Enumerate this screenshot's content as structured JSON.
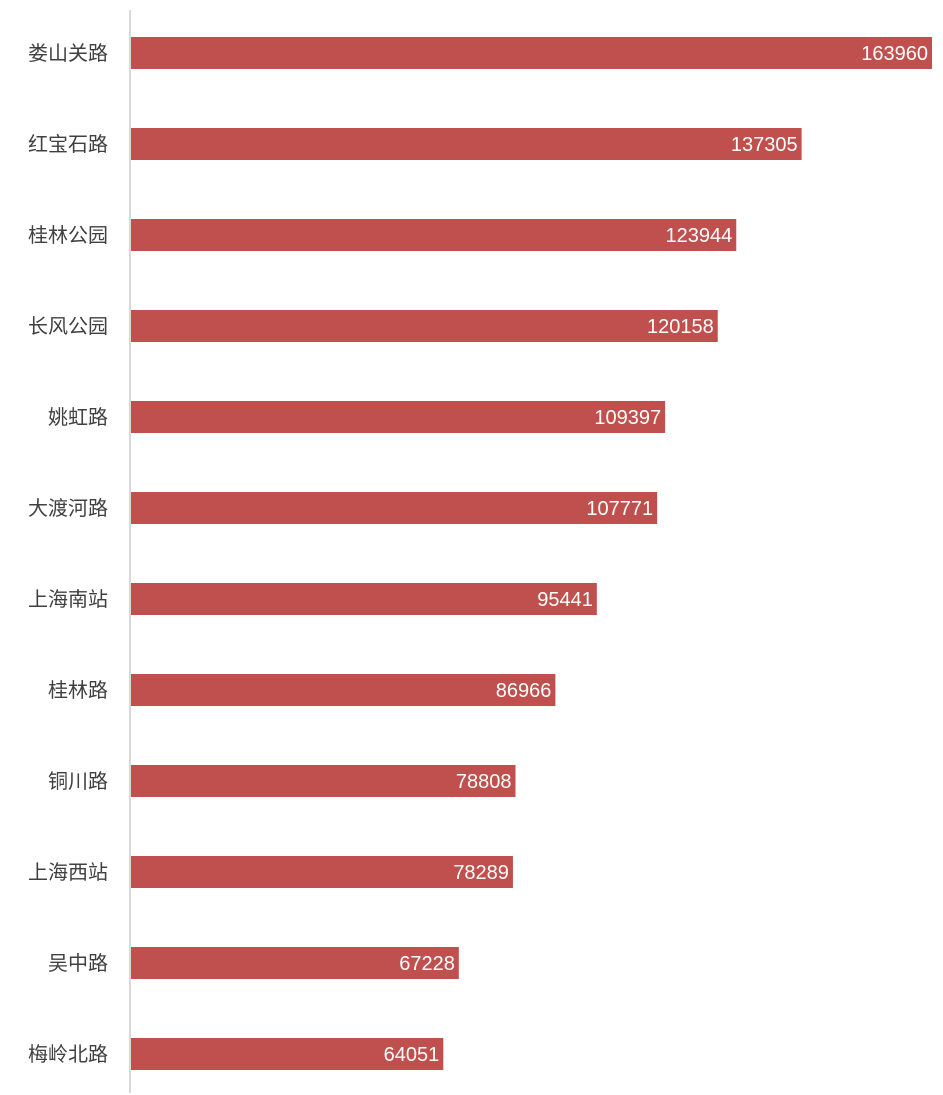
{
  "chart_data": {
    "type": "bar",
    "orientation": "horizontal",
    "title": "",
    "xlabel": "",
    "ylabel": "",
    "categories": [
      "娄山关路",
      "红宝石路",
      "桂林公园",
      "长风公园",
      "姚虹路",
      "大渡河路",
      "上海南站",
      "桂林路",
      "铜川路",
      "上海西站",
      "吴中路",
      "梅岭北路"
    ],
    "values": [
      163960,
      137305,
      123944,
      120158,
      109397,
      107771,
      95441,
      86966,
      78808,
      78289,
      67228,
      64051
    ],
    "xlim": [
      0,
      163960
    ],
    "data_labels": "inside-end",
    "grid": false,
    "legend": "none",
    "colors": {
      "bar": "#c0504d",
      "axis": "#d9d9d9",
      "category_text": "#404040",
      "value_text": "#ffffff"
    }
  }
}
